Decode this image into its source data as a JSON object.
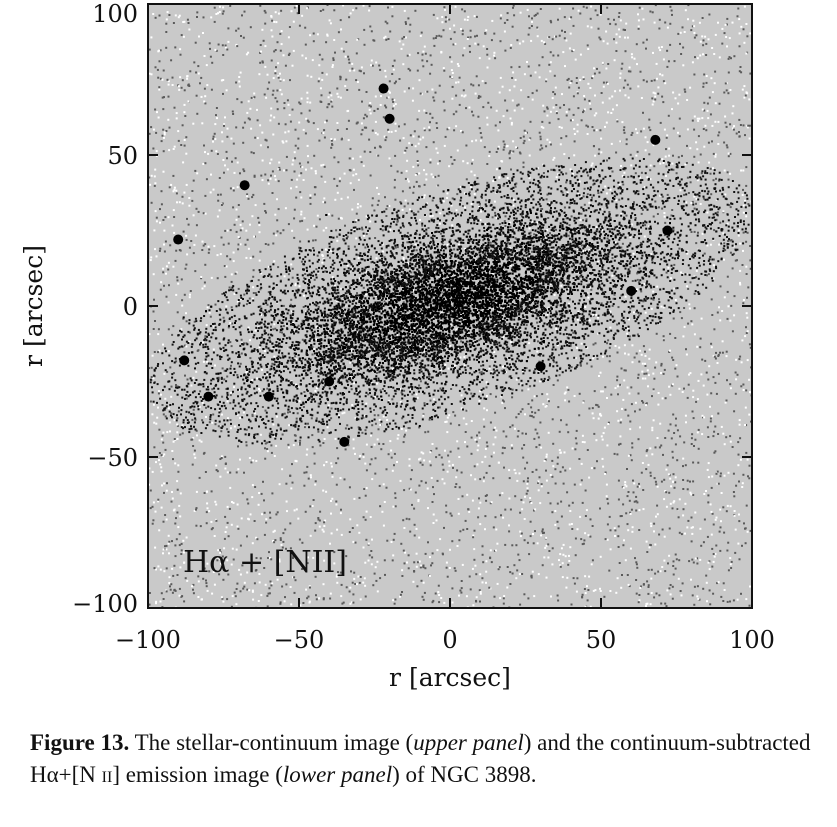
{
  "figure": {
    "panel_label": "Hα + [NII]",
    "xlabel": "r [arcsec]",
    "ylabel": "r [arcsec]"
  },
  "chart_data": {
    "type": "heatmap",
    "xlabel": "r [arcsec]",
    "ylabel": "r [arcsec]",
    "xlim": [
      -100,
      100
    ],
    "ylim": [
      -100,
      100
    ],
    "x_ticks": [
      -100,
      -50,
      0,
      50,
      100
    ],
    "y_ticks": [
      -100,
      -50,
      0,
      50,
      100
    ],
    "x_tick_labels": [
      "−100",
      "−50",
      "0",
      "50",
      "100"
    ],
    "y_tick_labels": [
      "−100",
      "−50",
      "0",
      "50",
      "100"
    ],
    "annotation": "Hα + [NII]",
    "grid": false,
    "colormap": "grayscale-inverted",
    "colors": {
      "background": "#c9c9c9",
      "emission": "#000000",
      "frame": "#111111"
    }
  },
  "caption": {
    "label": "Figure 13.",
    "part1": " The stellar-continuum image (",
    "upper": "upper panel",
    "part2": ") and the continuum-subtracted Hα+[N ",
    "roman": "ii",
    "part3": "] emission image (",
    "lower": "lower panel",
    "part4": ") of NGC 3898."
  }
}
